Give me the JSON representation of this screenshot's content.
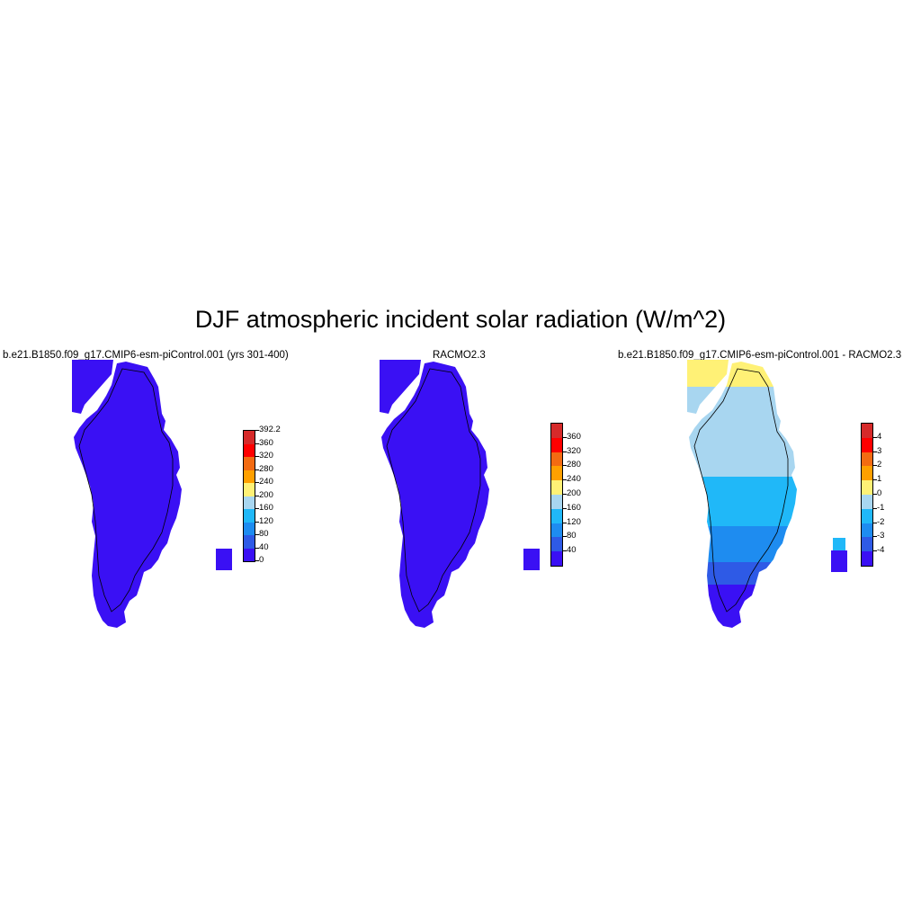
{
  "figure": {
    "title": "DJF atmospheric incident solar radiation (W/m^2)"
  },
  "panels": [
    {
      "title": "b.e21.B1850.f09_g17.CMIP6-esm-piControl.001 (yrs 301-400)",
      "colorbar_labels": [
        "392.2",
        "360",
        "320",
        "280",
        "240",
        "200",
        "160",
        "120",
        "80",
        "40",
        "0"
      ],
      "colorbar_colors": [
        "#d62a2a",
        "#ff0000",
        "#f36b12",
        "#ffa000",
        "#fff176",
        "#a8d6f0",
        "#20b8f8",
        "#1e8cf0",
        "#2e5ae6",
        "#3a10f4"
      ],
      "field_color": "#3a10f4"
    },
    {
      "title": "RACMO2.3",
      "colorbar_labels": [
        "360",
        "320",
        "280",
        "240",
        "200",
        "160",
        "120",
        "80",
        "40"
      ],
      "colorbar_colors": [
        "#d62a2a",
        "#ff0000",
        "#f36b12",
        "#ffa000",
        "#fff176",
        "#a8d6f0",
        "#20b8f8",
        "#1e8cf0",
        "#2e5ae6",
        "#3a10f4"
      ],
      "field_color": "#3a10f4"
    },
    {
      "title": "b.e21.B1850.f09_g17.CMIP6-esm-piControl.001 - RACMO2.3",
      "colorbar_labels": [
        "4",
        "3",
        "2",
        "1",
        "0",
        "-1",
        "-2",
        "-3",
        "-4"
      ],
      "colorbar_colors": [
        "#d62a2a",
        "#ff0000",
        "#f36b12",
        "#ffa000",
        "#fff176",
        "#a8d6f0",
        "#20b8f8",
        "#1e8cf0",
        "#2e5ae6",
        "#3a10f4"
      ],
      "field_colors": {
        "north": "#fff176",
        "upper": "#a8d6f0",
        "middle": "#20b8f8",
        "lower": "#1e8cf0",
        "deep": "#2e5ae6",
        "south": "#3a10f4"
      }
    }
  ]
}
